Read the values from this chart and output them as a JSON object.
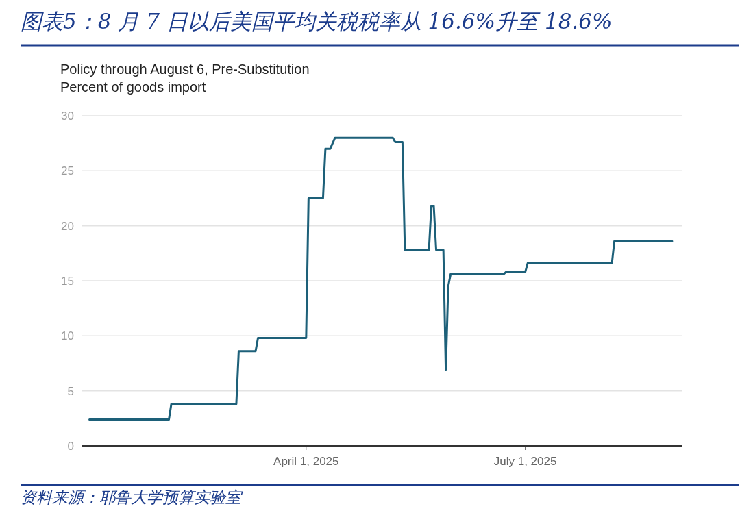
{
  "chart_data": {
    "type": "line",
    "title": "图表5：8 月 7 日以后美国平均关税税率从 16.6%升至 18.6%",
    "subtitle": "Policy through August 6, Pre-Substitution",
    "ylabel": "Percent of goods import",
    "annotations": [
      "资料来源：耶鲁大学预算实验室"
    ],
    "series": [
      {
        "color": "#1d6079",
        "x": [
          "2025-01-01",
          "2025-02-03",
          "2025-02-04",
          "2025-03-03",
          "2025-03-04",
          "2025-03-11",
          "2025-03-12",
          "2025-04-01",
          "2025-04-02",
          "2025-04-08",
          "2025-04-09",
          "2025-04-11",
          "2025-04-13",
          "2025-05-07",
          "2025-05-08",
          "2025-05-11",
          "2025-05-12",
          "2025-05-22",
          "2025-05-23",
          "2025-05-24",
          "2025-05-25",
          "2025-05-28",
          "2025-05-29",
          "2025-05-30",
          "2025-05-31",
          "2025-06-22",
          "2025-06-23",
          "2025-07-01",
          "2025-07-02",
          "2025-08-06",
          "2025-08-07",
          "2025-08-31"
        ],
        "values": [
          2.4,
          2.4,
          3.8,
          3.8,
          8.6,
          8.6,
          9.8,
          9.8,
          22.5,
          22.5,
          27.0,
          27.0,
          28.0,
          28.0,
          27.6,
          27.6,
          17.8,
          17.8,
          21.8,
          21.8,
          17.8,
          17.8,
          6.9,
          14.5,
          15.6,
          15.6,
          15.8,
          15.8,
          16.6,
          16.6,
          18.6,
          18.6
        ]
      }
    ],
    "xlim": [
      "2024-12-29",
      "2025-09-04"
    ],
    "xticks": [
      {
        "value": "2025-04-01",
        "label": "April 1, 2025"
      },
      {
        "value": "2025-07-01",
        "label": "July 1, 2025"
      }
    ],
    "ylim": [
      0,
      30
    ],
    "yticks": [
      0,
      5,
      10,
      15,
      20,
      25,
      30
    ],
    "grid": "y",
    "line_style": "solid",
    "marker": "none"
  }
}
